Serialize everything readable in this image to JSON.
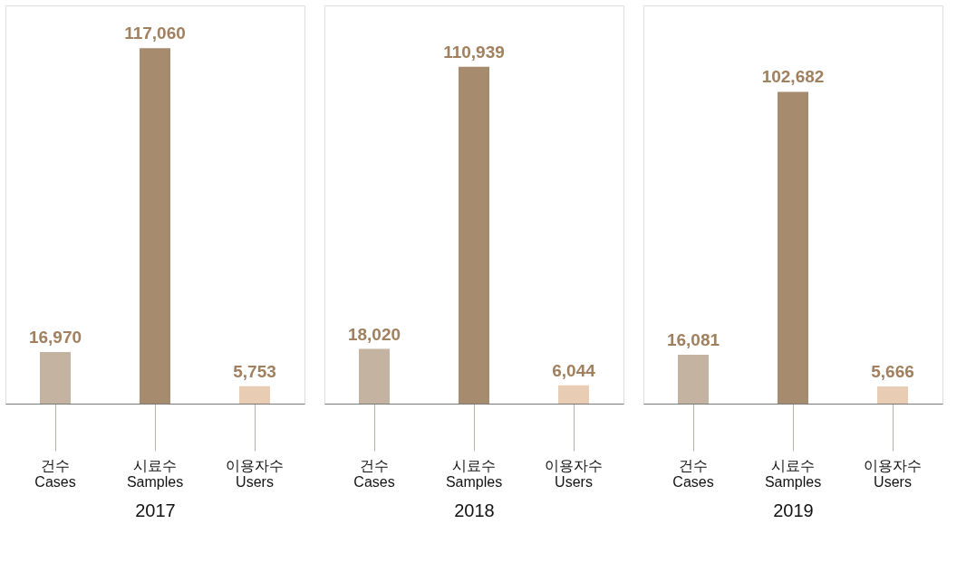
{
  "chart_data": [
    {
      "type": "bar",
      "xlabel": "2017",
      "categories": [
        "건수\nCases",
        "시료수\nSamples",
        "이용자수\nUsers"
      ],
      "values": [
        16970,
        117060,
        5753
      ],
      "value_labels": [
        "16,970",
        "117,060",
        "5,753"
      ],
      "colors": [
        "#c4b3a0",
        "#a68b6e",
        "#e8cdb4"
      ],
      "grid": false,
      "legend": false
    },
    {
      "type": "bar",
      "xlabel": "2018",
      "categories": [
        "건수\nCases",
        "시료수\nSamples",
        "이용자수\nUsers"
      ],
      "values": [
        18020,
        110939,
        6044
      ],
      "value_labels": [
        "18,020",
        "110,939",
        "6,044"
      ],
      "colors": [
        "#c4b3a0",
        "#a68b6e",
        "#e8cdb4"
      ],
      "grid": false,
      "legend": false
    },
    {
      "type": "bar",
      "xlabel": "2019",
      "categories": [
        "건수\nCases",
        "시료수\nSamples",
        "이용자수\nUsers"
      ],
      "values": [
        16081,
        102682,
        5666
      ],
      "value_labels": [
        "16,081",
        "102,682",
        "5,666"
      ],
      "colors": [
        "#c4b3a0",
        "#a68b6e",
        "#e8cdb4"
      ],
      "grid": false,
      "legend": false
    }
  ]
}
